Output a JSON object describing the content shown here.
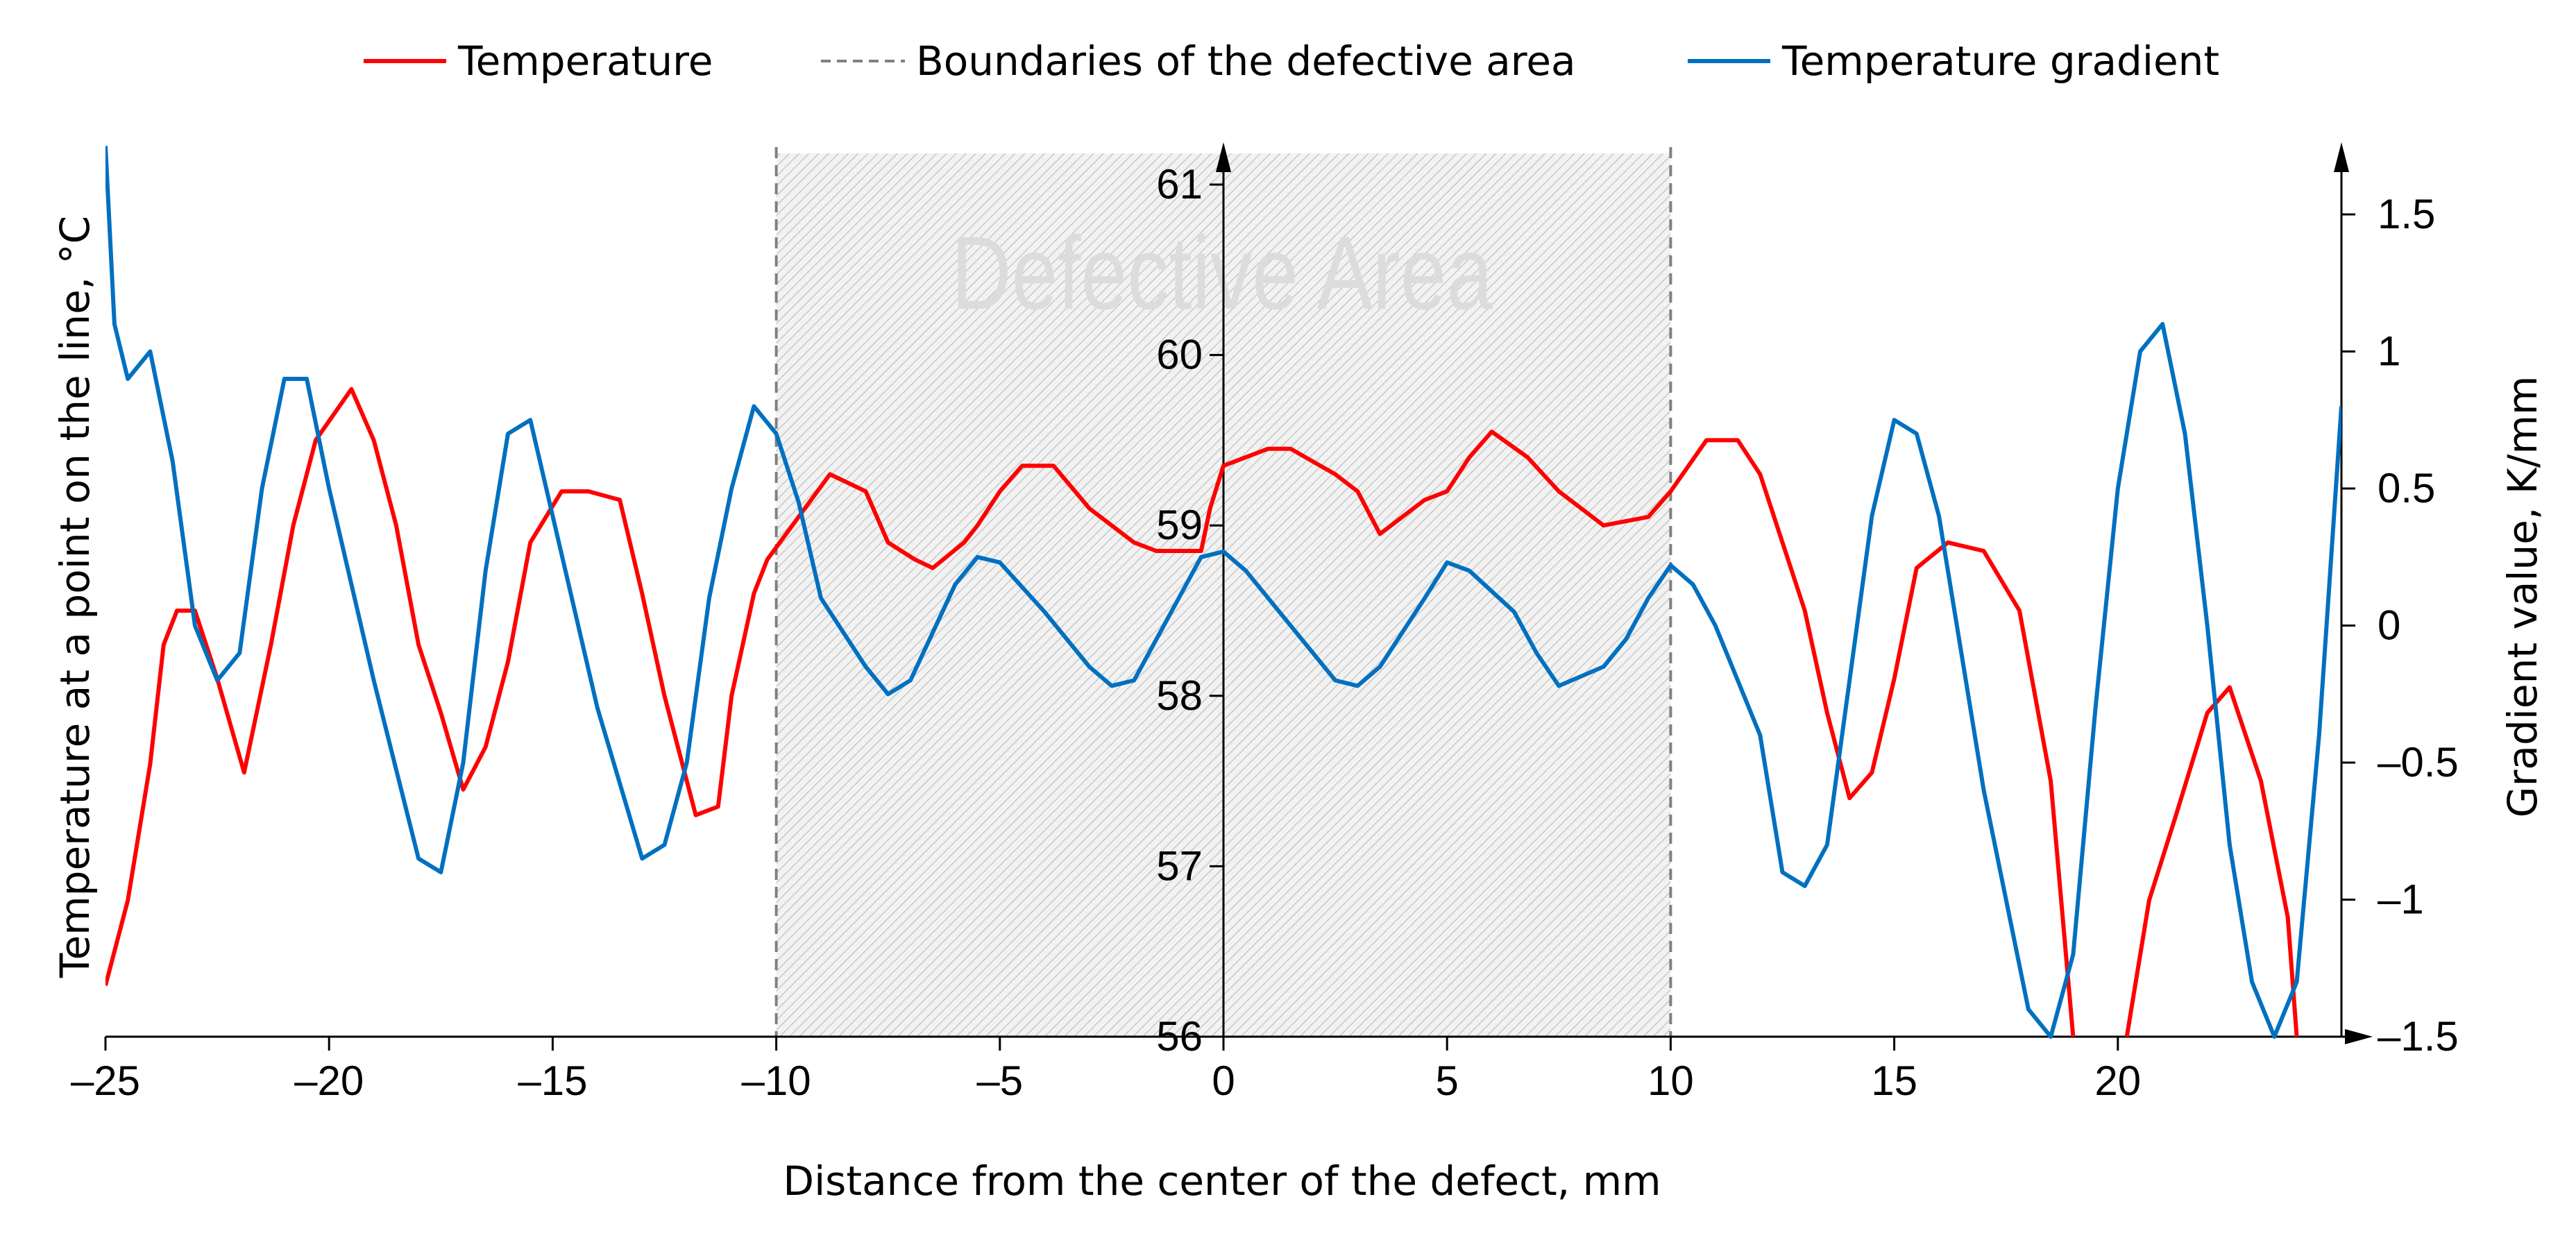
{
  "chart_data": {
    "type": "line",
    "xlabel": "Distance from the center of the defect, mm",
    "ylabel_left": "Temperature at a point on the line, °C",
    "ylabel_right": "Gradient value, K/mm",
    "xlim": [
      -25,
      25
    ],
    "ylim_left": [
      56,
      61.2
    ],
    "ylim_right": [
      -1.5,
      1.7
    ],
    "x_ticks": [
      "–25",
      "–20",
      "–15",
      "–10",
      "–5",
      "0",
      "5",
      "10",
      "15",
      "20"
    ],
    "x_tick_values": [
      -25,
      -20,
      -15,
      -10,
      -5,
      0,
      5,
      10,
      15,
      20
    ],
    "y_left_ticks": [
      "56",
      "57",
      "58",
      "59",
      "60",
      "61"
    ],
    "y_left_tick_values": [
      56,
      57,
      58,
      59,
      60,
      61
    ],
    "y_right_ticks": [
      "–1.5",
      "–1",
      "–0.5",
      "0",
      "0.5",
      "1",
      "1.5"
    ],
    "y_right_tick_values": [
      -1.5,
      -1,
      -0.5,
      0,
      0.5,
      1,
      1.5
    ],
    "grid": false,
    "legend_placement": "top",
    "annotation": "Defective Area",
    "defective_area": [
      -10,
      10
    ],
    "legend": {
      "temperature": "Temperature",
      "boundaries": "Boundaries of the defective area",
      "gradient": "Temperature gradient"
    },
    "colors": {
      "temperature": "#ff0000",
      "gradient": "#0070c0",
      "boundaries": "#808080"
    },
    "series": [
      {
        "name": "Temperature",
        "axis": "left",
        "x": [
          -25,
          -24.5,
          -24,
          -23.7,
          -23.4,
          -23,
          -22.5,
          -21.9,
          -21.3,
          -20.8,
          -20.3,
          -19.9,
          -19.5,
          -19,
          -18.5,
          -18,
          -17.5,
          -17,
          -16.5,
          -16,
          -15.5,
          -14.8,
          -14.2,
          -13.5,
          -13,
          -12.5,
          -11.8,
          -11.3,
          -11,
          -10.5,
          -10.2,
          -9.5,
          -8.8,
          -8,
          -7.5,
          -6.9,
          -6.5,
          -5.8,
          -5.5,
          -5,
          -4.5,
          -3.8,
          -3,
          -2,
          -1.5,
          -0.5,
          -0.3,
          0,
          1,
          1.5,
          2.5,
          3,
          3.5,
          4,
          4.5,
          5,
          5.5,
          6,
          6.8,
          7.5,
          8.5,
          9.5,
          10,
          10.8,
          11.5,
          12,
          12.5,
          13,
          13.5,
          14,
          14.5,
          15,
          15.5,
          16.2,
          17,
          17.8,
          18.5,
          19
        ],
        "y": [
          56.3,
          56.8,
          57.6,
          58.3,
          58.5,
          58.5,
          58.1,
          57.55,
          58.3,
          59.0,
          59.5,
          59.65,
          59.8,
          59.5,
          59.0,
          58.3,
          57.9,
          57.45,
          57.7,
          58.2,
          58.9,
          59.2,
          59.2,
          59.15,
          58.6,
          58.0,
          57.3,
          57.35,
          58.0,
          58.6,
          58.8,
          59.05,
          59.3,
          59.2,
          58.9,
          58.8,
          58.75,
          58.9,
          59.0,
          59.2,
          59.35,
          59.35,
          59.1,
          58.9,
          58.85,
          58.85,
          59.1,
          59.35,
          59.45,
          59.45,
          59.3,
          59.2,
          58.95,
          59.05,
          59.15,
          59.2,
          59.4,
          59.55,
          59.4,
          59.2,
          59.0,
          59.05,
          59.2,
          59.5,
          59.5,
          59.3,
          58.9,
          58.5,
          57.9,
          57.4,
          57.55,
          58.1,
          58.75,
          58.9,
          58.85,
          58.5,
          57.5,
          56.0
        ]
      },
      {
        "name": "Temperature",
        "axis": "left",
        "segment": 2,
        "x": [
          20.2,
          20.7,
          21.3,
          22,
          22.5,
          23.2,
          23.8,
          24
        ],
        "y": [
          56.0,
          56.8,
          57.3,
          57.9,
          58.05,
          57.5,
          56.7,
          56.0
        ]
      },
      {
        "name": "Temperature gradient",
        "axis": "right",
        "x": [
          -25,
          -24.8,
          -24.5,
          -24,
          -23.5,
          -23,
          -22.5,
          -22,
          -21.5,
          -21,
          -20.5,
          -20,
          -19,
          -18,
          -17.5,
          -17,
          -16.5,
          -16,
          -15.5,
          -15,
          -14,
          -13,
          -12.5,
          -12,
          -11.5,
          -11,
          -10.5,
          -10,
          -9.5,
          -9,
          -8,
          -7.5,
          -7,
          -6,
          -5.5,
          -5,
          -4,
          -3,
          -2.5,
          -2,
          -1,
          -0.5,
          0,
          0.5,
          1.5,
          2.5,
          3,
          3.5,
          4.5,
          5,
          5.5,
          6.5,
          7,
          7.5,
          8.5,
          9,
          9.5,
          10,
          10.5,
          11,
          12,
          12.5,
          13,
          13.5,
          14,
          14.5,
          15,
          15.5,
          16,
          16.5,
          17,
          17.5,
          18,
          18.5,
          19,
          19.5,
          20,
          20.5,
          21,
          21.5,
          22,
          22.5,
          23,
          23.5,
          24,
          24.5,
          25
        ],
        "y": [
          1.75,
          1.1,
          0.9,
          1.0,
          0.6,
          0,
          -0.2,
          -0.1,
          0.5,
          0.9,
          0.9,
          0.5,
          -0.2,
          -0.85,
          -0.9,
          -0.5,
          0.2,
          0.7,
          0.75,
          0.4,
          -0.3,
          -0.85,
          -0.8,
          -0.5,
          0.1,
          0.5,
          0.8,
          0.7,
          0.45,
          0.1,
          -0.15,
          -0.25,
          -0.2,
          0.15,
          0.25,
          0.23,
          0.05,
          -0.15,
          -0.22,
          -0.2,
          0.1,
          0.25,
          0.27,
          0.2,
          0,
          -0.2,
          -0.22,
          -0.15,
          0.1,
          0.23,
          0.2,
          0.05,
          -0.1,
          -0.22,
          -0.15,
          -0.05,
          0.1,
          0.22,
          0.15,
          0,
          -0.4,
          -0.9,
          -0.95,
          -0.8,
          -0.2,
          0.4,
          0.75,
          0.7,
          0.4,
          -0.1,
          -0.6,
          -1.0,
          -1.4,
          -1.5,
          -1.2,
          -0.3,
          0.5,
          1.0,
          1.1,
          0.7,
          0,
          -0.8,
          -1.3,
          -1.5,
          -1.3,
          -0.4,
          0.8
        ]
      }
    ]
  }
}
